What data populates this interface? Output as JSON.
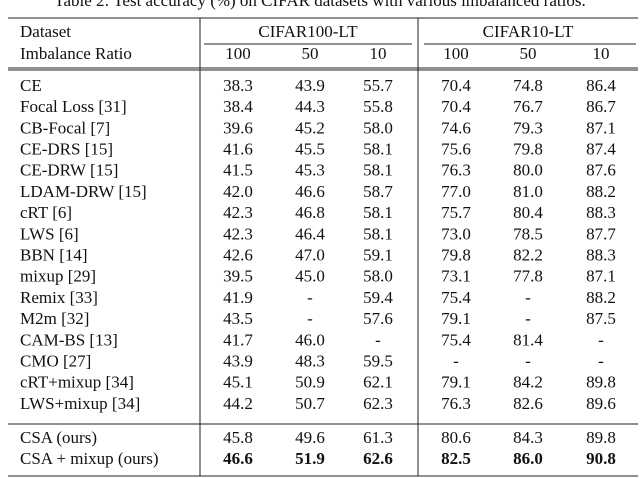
{
  "caption": "Table 2: Test accuracy (%) on CIFAR datasets with various imbalanced ratios.",
  "table": {
    "group_headers": [
      "Dataset",
      "CIFAR100-LT",
      "CIFAR10-LT"
    ],
    "sub_headers": [
      "Imbalance Ratio",
      "100",
      "50",
      "10",
      "100",
      "50",
      "10"
    ],
    "rows": [
      [
        "CE",
        "38.3",
        "43.9",
        "55.7",
        "70.4",
        "74.8",
        "86.4"
      ],
      [
        "Focal Loss [31]",
        "38.4",
        "44.3",
        "55.8",
        "70.4",
        "76.7",
        "86.7"
      ],
      [
        "CB-Focal [7]",
        "39.6",
        "45.2",
        "58.0",
        "74.6",
        "79.3",
        "87.1"
      ],
      [
        "CE-DRS [15]",
        "41.6",
        "45.5",
        "58.1",
        "75.6",
        "79.8",
        "87.4"
      ],
      [
        "CE-DRW [15]",
        "41.5",
        "45.3",
        "58.1",
        "76.3",
        "80.0",
        "87.6"
      ],
      [
        "LDAM-DRW [15]",
        "42.0",
        "46.6",
        "58.7",
        "77.0",
        "81.0",
        "88.2"
      ],
      [
        "cRT [6]",
        "42.3",
        "46.8",
        "58.1",
        "75.7",
        "80.4",
        "88.3"
      ],
      [
        "LWS [6]",
        "42.3",
        "46.4",
        "58.1",
        "73.0",
        "78.5",
        "87.7"
      ],
      [
        "BBN [14]",
        "42.6",
        "47.0",
        "59.1",
        "79.8",
        "82.2",
        "88.3"
      ],
      [
        "mixup [29]",
        "39.5",
        "45.0",
        "58.0",
        "73.1",
        "77.8",
        "87.1"
      ],
      [
        "Remix [33]",
        "41.9",
        "-",
        "59.4",
        "75.4",
        "-",
        "88.2"
      ],
      [
        "M2m [32]",
        "43.5",
        "-",
        "57.6",
        "79.1",
        "-",
        "87.5"
      ],
      [
        "CAM-BS [13]",
        "41.7",
        "46.0",
        "-",
        "75.4",
        "81.4",
        "-"
      ],
      [
        "CMO [27]",
        "43.9",
        "48.3",
        "59.5",
        "-",
        "-",
        "-"
      ],
      [
        "cRT+mixup [34]",
        "45.1",
        "50.9",
        "62.1",
        "79.1",
        "84.2",
        "89.8"
      ],
      [
        "LWS+mixup [34]",
        "44.2",
        "50.7",
        "62.3",
        "76.3",
        "82.6",
        "89.6"
      ]
    ],
    "ours_rows": [
      [
        "CSA (ours)",
        "45.8",
        "49.6",
        "61.3",
        "80.6",
        "84.3",
        "89.8"
      ],
      [
        "CSA + mixup (ours)",
        "46.6",
        "51.9",
        "62.6",
        "82.5",
        "86.0",
        "90.8"
      ]
    ]
  }
}
